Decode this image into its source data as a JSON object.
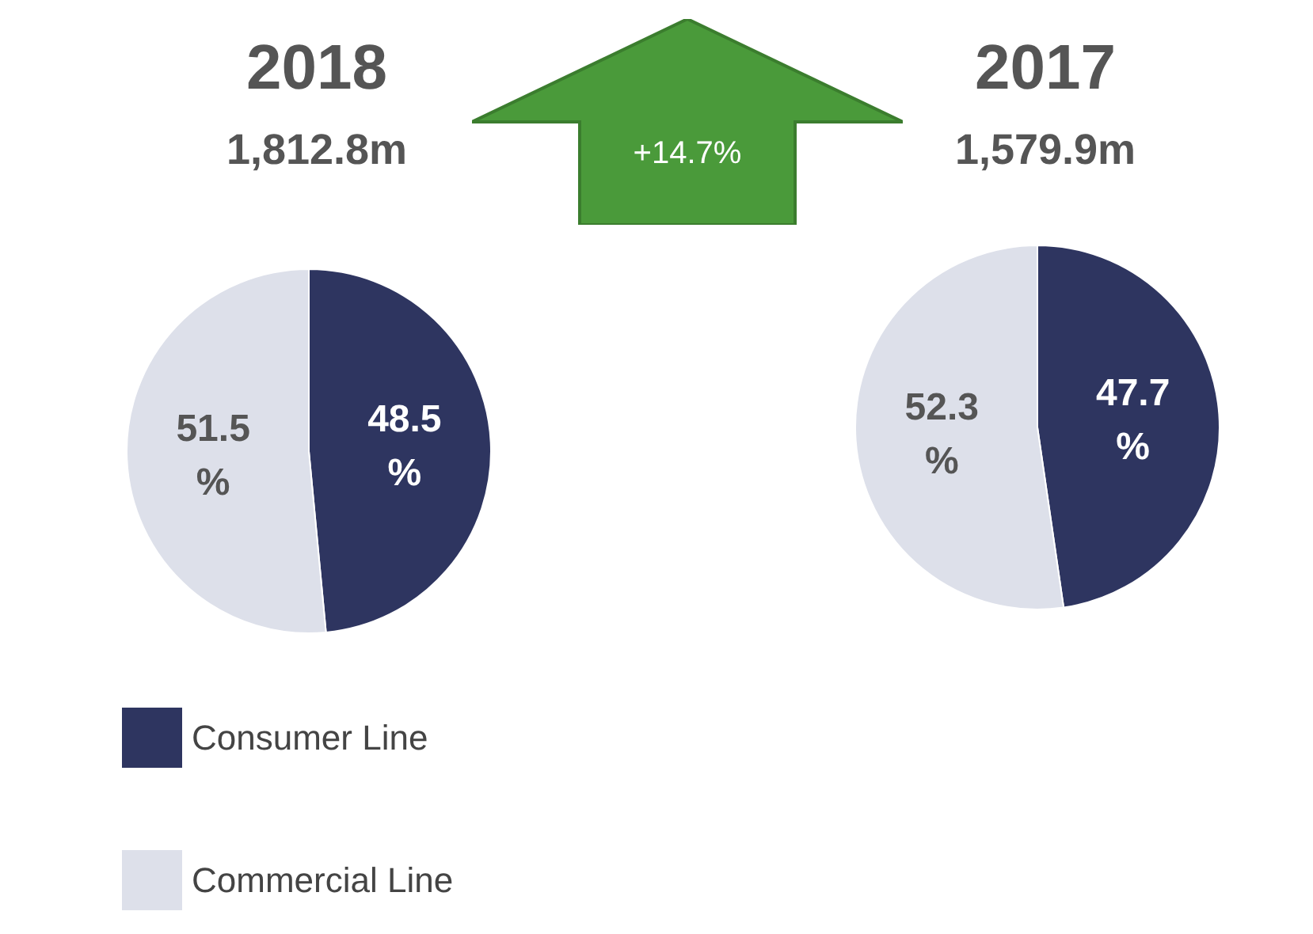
{
  "chart_data": [
    {
      "type": "pie",
      "title": "2018",
      "subtitle": "1,812.8m",
      "annotations": [
        "+14.7%"
      ],
      "categories": [
        "Consumer Line",
        "Commercial Line"
      ],
      "values": [
        48.5,
        51.5
      ],
      "colors": [
        "#2e3560",
        "#dde0ea"
      ],
      "value_labels": [
        "48.5\n%",
        "51.5\n%"
      ],
      "legend": "bottom left"
    },
    {
      "type": "pie",
      "title": "2017",
      "subtitle": "1,579.9m",
      "categories": [
        null,
        null
      ],
      "values": [
        47.7,
        52.3
      ],
      "colors": [
        "#2e3560",
        "#dde0ea"
      ],
      "value_labels": [
        "47.7\n%",
        "52.3\n%"
      ]
    }
  ]
}
